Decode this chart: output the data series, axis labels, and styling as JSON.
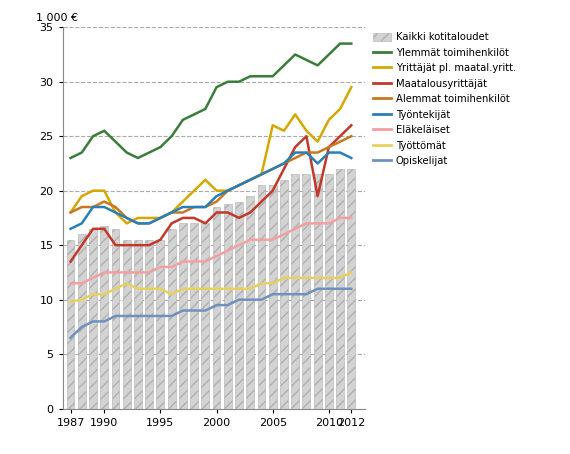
{
  "years": [
    1987,
    1988,
    1989,
    1990,
    1991,
    1992,
    1993,
    1994,
    1995,
    1996,
    1997,
    1998,
    1999,
    2000,
    2001,
    2002,
    2003,
    2004,
    2005,
    2006,
    2007,
    2008,
    2009,
    2010,
    2011,
    2012
  ],
  "kaikki": [
    15.5,
    16.0,
    16.5,
    16.8,
    16.5,
    15.5,
    15.5,
    15.5,
    15.5,
    16.5,
    17.0,
    17.0,
    17.0,
    18.5,
    18.8,
    19.0,
    19.5,
    20.5,
    20.5,
    21.0,
    21.5,
    21.5,
    21.5,
    21.5,
    22.0,
    22.0
  ],
  "ylemmat": [
    23.0,
    23.5,
    25.0,
    25.5,
    24.5,
    23.5,
    23.0,
    23.5,
    24.0,
    25.0,
    26.5,
    27.0,
    27.5,
    29.5,
    30.0,
    30.0,
    30.5,
    30.5,
    30.5,
    31.5,
    32.5,
    32.0,
    31.5,
    32.5,
    33.5,
    33.5
  ],
  "yrittajat": [
    18.0,
    19.5,
    20.0,
    20.0,
    18.0,
    17.0,
    17.5,
    17.5,
    17.5,
    18.0,
    19.0,
    20.0,
    21.0,
    20.0,
    20.0,
    20.5,
    21.0,
    21.5,
    26.0,
    25.5,
    27.0,
    25.5,
    24.5,
    26.5,
    27.5,
    29.5
  ],
  "maatalous": [
    13.5,
    15.0,
    16.5,
    16.5,
    15.0,
    15.0,
    15.0,
    15.0,
    15.5,
    17.0,
    17.5,
    17.5,
    17.0,
    18.0,
    18.0,
    17.5,
    18.0,
    19.0,
    20.0,
    22.0,
    24.0,
    25.0,
    19.5,
    24.0,
    25.0,
    26.0
  ],
  "alemmat": [
    18.0,
    18.5,
    18.5,
    19.0,
    18.5,
    17.5,
    17.0,
    17.0,
    17.5,
    18.0,
    18.0,
    18.5,
    18.5,
    19.0,
    20.0,
    20.5,
    21.0,
    21.5,
    22.0,
    22.5,
    23.0,
    23.5,
    23.5,
    24.0,
    24.5,
    25.0
  ],
  "tyontekijat": [
    16.5,
    17.0,
    18.5,
    18.5,
    18.0,
    17.5,
    17.0,
    17.0,
    17.5,
    18.0,
    18.5,
    18.5,
    18.5,
    19.5,
    20.0,
    20.5,
    21.0,
    21.5,
    22.0,
    22.5,
    23.5,
    23.5,
    22.5,
    23.5,
    23.5,
    23.0
  ],
  "elakelaset": [
    11.5,
    11.5,
    12.0,
    12.5,
    12.5,
    12.5,
    12.5,
    12.5,
    13.0,
    13.0,
    13.5,
    13.5,
    13.5,
    14.0,
    14.5,
    15.0,
    15.5,
    15.5,
    15.5,
    16.0,
    16.5,
    17.0,
    17.0,
    17.0,
    17.5,
    17.5
  ],
  "tyottomat": [
    9.8,
    10.0,
    10.5,
    10.5,
    11.0,
    11.5,
    11.0,
    11.0,
    11.0,
    10.5,
    11.0,
    11.0,
    11.0,
    11.0,
    11.0,
    11.0,
    11.0,
    11.5,
    11.5,
    12.0,
    12.0,
    12.0,
    12.0,
    12.0,
    12.0,
    12.5
  ],
  "opiskelijat": [
    6.5,
    7.5,
    8.0,
    8.0,
    8.5,
    8.5,
    8.5,
    8.5,
    8.5,
    8.5,
    9.0,
    9.0,
    9.0,
    9.5,
    9.5,
    10.0,
    10.0,
    10.0,
    10.5,
    10.5,
    10.5,
    10.5,
    11.0,
    11.0,
    11.0,
    11.0
  ],
  "color_ylemmat": "#3a7d3a",
  "color_yrittajat": "#d4a800",
  "color_maatalous": "#c0392b",
  "color_alemmat": "#c87820",
  "color_tyontekijat": "#2980b9",
  "color_elakelaset": "#f4a0a0",
  "color_tyottomat": "#e8d060",
  "color_opiskelijat": "#7090c0",
  "ylabel": "1 000 €",
  "ylim": [
    0,
    35
  ],
  "yticks": [
    0,
    5,
    10,
    15,
    20,
    25,
    30,
    35
  ],
  "xticks": [
    1987,
    1990,
    1995,
    2000,
    2005,
    2010,
    2012
  ],
  "legend_labels": [
    "Kaikki kotitaloudet",
    "Ylemmät toimihenkilöt",
    "Yrittäjät pl. maatal.yritt.",
    "Maatalousyrittäjät",
    "Alemmat toimihenkilöt",
    "Työntekijät",
    "Eläkeläiset",
    "Työttömät",
    "Opiskelijat"
  ],
  "bar_color": "#d3d3d3",
  "bar_edgecolor": "#b0b0b0",
  "bar_hatch": "///",
  "figsize": [
    5.7,
    4.54
  ],
  "dpi": 100
}
